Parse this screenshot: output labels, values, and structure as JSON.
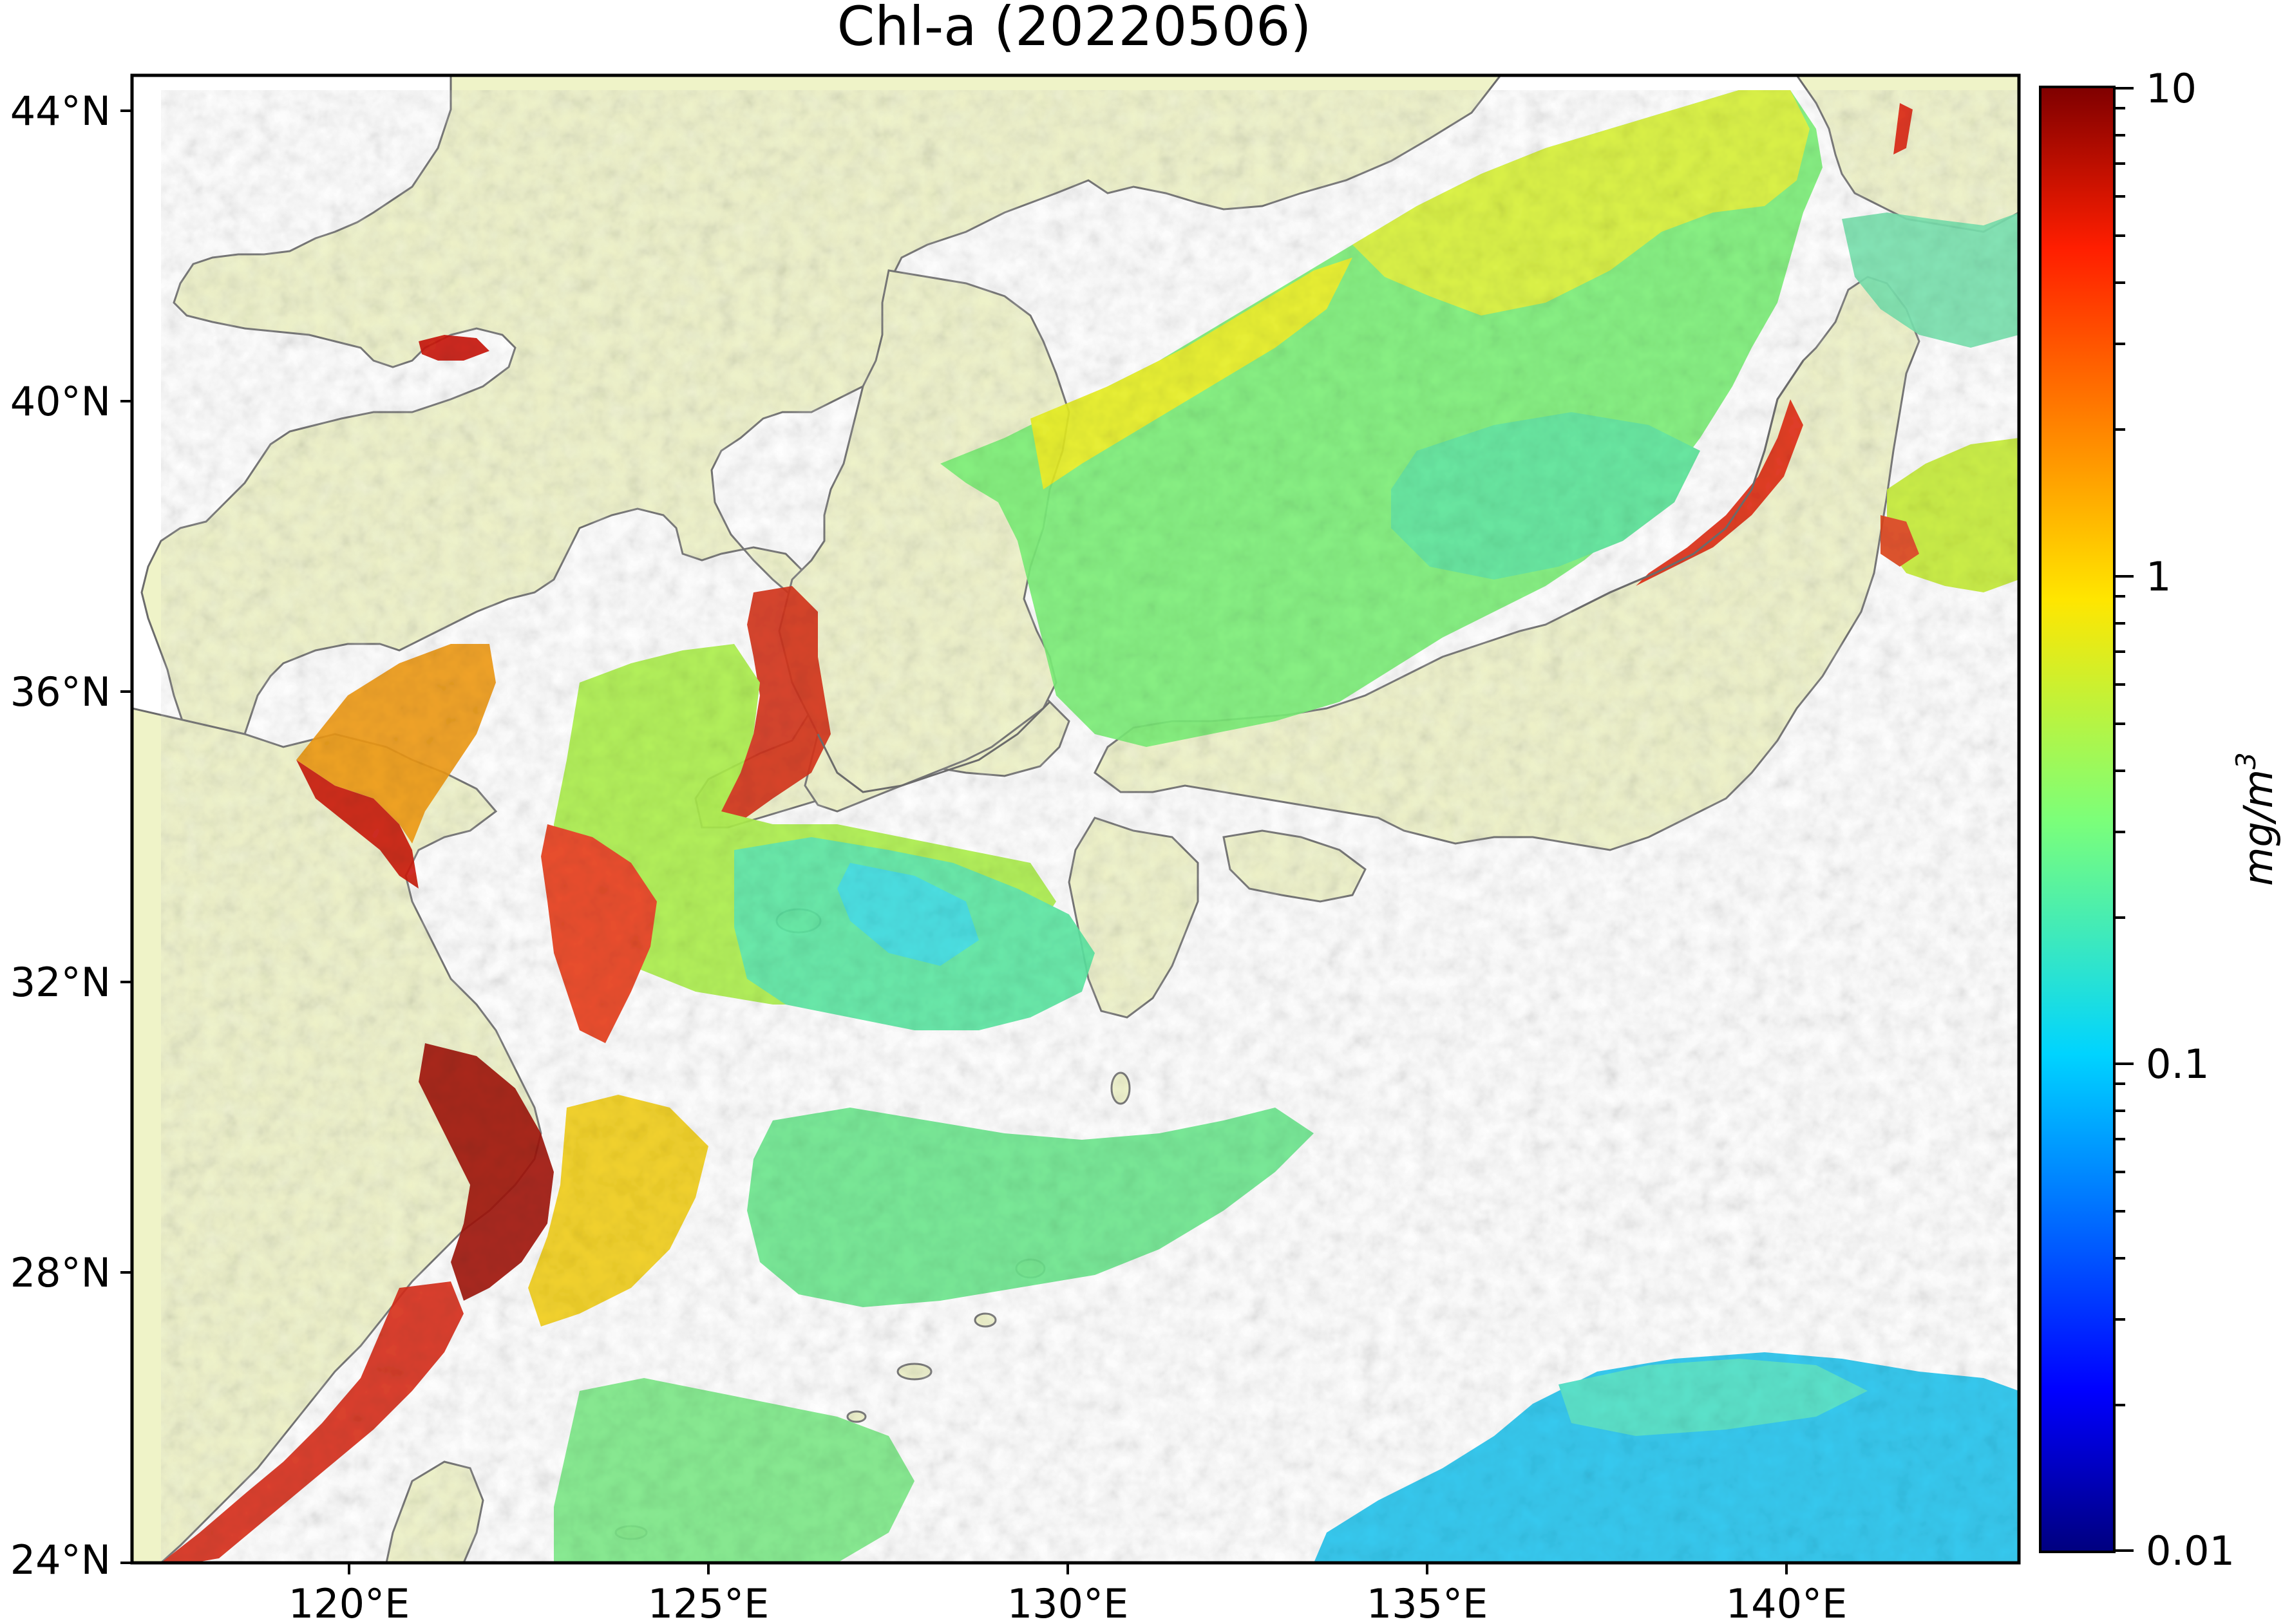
{
  "map": {
    "title": "Chl-a (20220506)",
    "lon_ticks": [
      "120°E",
      "125°E",
      "130°E",
      "135°E",
      "140°E"
    ],
    "lat_ticks": [
      "44°N",
      "40°N",
      "36°N",
      "32°N",
      "28°N",
      "24°N"
    ],
    "lon_range": [
      116.75,
      143.0
    ],
    "lat_range": [
      24.0,
      44.5
    ],
    "colors": {
      "land": "#eff3c8",
      "coastline": "#6b6b6b",
      "nodata": "#ffffff"
    }
  },
  "colorbar": {
    "label": "mg/m",
    "label_sup": "3",
    "scale": "log",
    "ticks": [
      "10",
      "1",
      "0.1",
      "0.01"
    ],
    "range": [
      0.01,
      10
    ],
    "colormap": "jet"
  }
}
